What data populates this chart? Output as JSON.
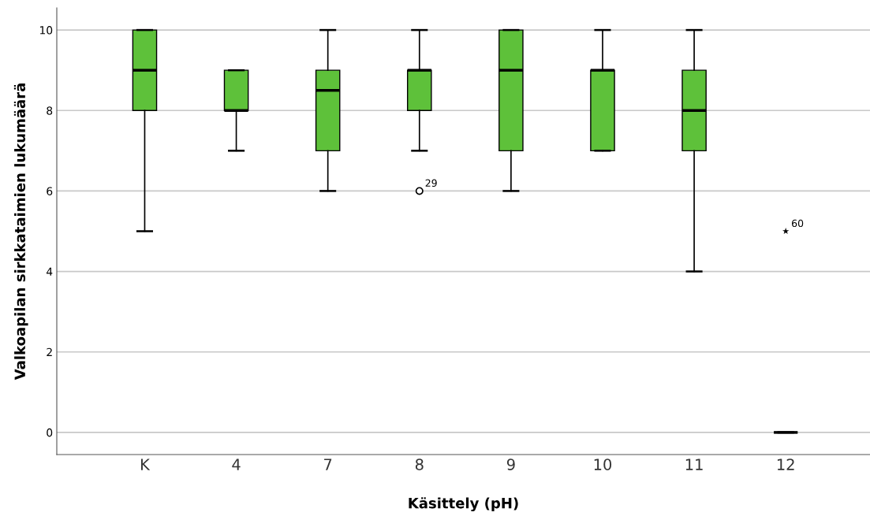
{
  "chart_data": {
    "type": "box",
    "xlabel": "Käsittely (pH)",
    "ylabel": "Valkoapilan sirkkataimien lukumäärä",
    "categories": [
      "K",
      "4",
      "7",
      "8",
      "9",
      "10",
      "11",
      "12"
    ],
    "boxes": [
      {
        "low": 5,
        "q1": 8,
        "median": 9,
        "q3": 10,
        "high": 10
      },
      {
        "low": 7,
        "q1": 8,
        "median": 8,
        "q3": 9,
        "high": 9
      },
      {
        "low": 6,
        "q1": 7,
        "median": 8.5,
        "q3": 9,
        "high": 10
      },
      {
        "low": 7,
        "q1": 8,
        "median": 9,
        "q3": 9,
        "high": 10
      },
      {
        "low": 6,
        "q1": 7,
        "median": 9,
        "q3": 10,
        "high": 10
      },
      {
        "low": 7,
        "q1": 7,
        "median": 9,
        "q3": 9,
        "high": 10
      },
      {
        "low": 4,
        "q1": 7,
        "median": 8,
        "q3": 9,
        "high": 10
      },
      {
        "low": 0,
        "q1": 0,
        "median": 0,
        "q3": 0,
        "high": 0
      }
    ],
    "color": "#5ec13a",
    "series": [
      {
        "type": "scatter",
        "x": [
          "8"
        ],
        "values": [
          6
        ],
        "marker": "circle",
        "color": "#000000"
      },
      {
        "type": "scatter",
        "x": [
          "12"
        ],
        "values": [
          5
        ],
        "marker": "star",
        "color": "#000000"
      }
    ],
    "annotations": [
      {
        "text": "29",
        "x": "8",
        "y": 6
      },
      {
        "text": "60",
        "x": "12",
        "y": 5
      }
    ],
    "ylim": [
      -0.55,
      10.55
    ],
    "yticks": [
      0,
      2,
      4,
      6,
      8,
      10
    ],
    "grid": "y"
  }
}
